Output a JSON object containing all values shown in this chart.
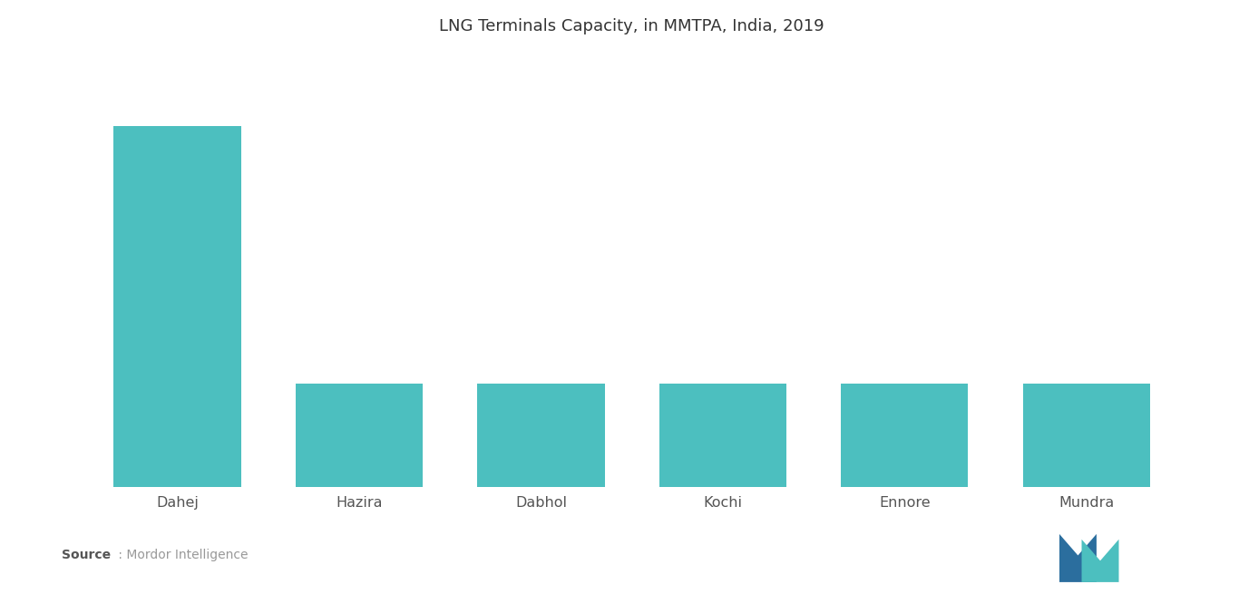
{
  "title": "LNG Terminals Capacity, in MMTPA, India, 2019",
  "categories": [
    "Dahej",
    "Hazira",
    "Dabhol",
    "Kochi",
    "Ennore",
    "Mundra"
  ],
  "values": [
    17.5,
    5.0,
    5.0,
    5.0,
    5.0,
    5.0
  ],
  "bar_color": "#4CBFBF",
  "background_color": "#ffffff",
  "title_fontsize": 13,
  "tick_fontsize": 11.5,
  "source_bold": "Source",
  "source_normal": " : Mordor Intelligence",
  "ylim": [
    0,
    21
  ],
  "bar_width": 0.7,
  "logo_color_dark": "#2B6CB0",
  "logo_color_teal": "#4CBFBF"
}
